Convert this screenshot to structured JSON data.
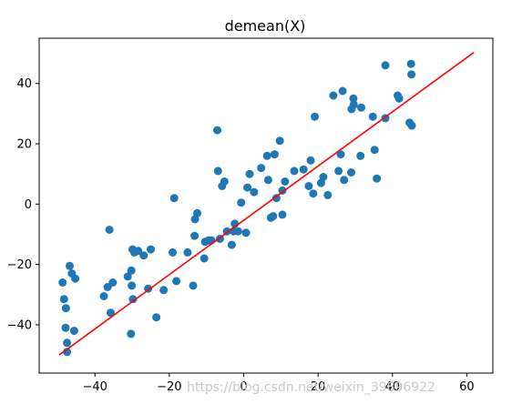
{
  "chart_data": {
    "type": "scatter",
    "title": "demean(X)",
    "xlabel": "",
    "ylabel": "",
    "xlim": [
      -55,
      67
    ],
    "ylim": [
      -56,
      55
    ],
    "xticks": [
      -40,
      -20,
      0,
      20,
      40,
      60
    ],
    "yticks": [
      -40,
      -20,
      0,
      20,
      40
    ],
    "grid": false,
    "series": [
      {
        "type": "scatter",
        "color": "#1f77b4",
        "x": [
          -48.7,
          -48.3,
          -47.9,
          -47.8,
          -47.5,
          -47.5,
          -46.8,
          -46.2,
          -45.6,
          -45.3,
          -37.6,
          -36.6,
          -36.1,
          -35.8,
          -35.2,
          -31.2,
          -30.3,
          -30.2,
          -30.1,
          -29.9,
          -29.8,
          -29.4,
          -28.4,
          -26.9,
          -25.7,
          -25.0,
          -23.5,
          -21.5,
          -19.1,
          -18.7,
          -18.1,
          -15.1,
          -13.6,
          -13.2,
          -13.1,
          -12.5,
          -10.6,
          -10.4,
          -9.4,
          -8.7,
          -7.1,
          -6.9,
          -6.4,
          -5.8,
          -5.2,
          -4.5,
          -3.2,
          -2.7,
          -2.4,
          -1.5,
          -0.7,
          0.6,
          1.0,
          1.6,
          2.8,
          4.7,
          6.3,
          6.6,
          7.3,
          7.9,
          8.3,
          8.8,
          9.7,
          10.4,
          10.4,
          11.1,
          13.6,
          16.1,
          17.5,
          18.0,
          18.7,
          19.1,
          20.8,
          21.4,
          22.6,
          24.1,
          25.5,
          26.1,
          26.6,
          27.0,
          28.9,
          29.0,
          29.5,
          29.6,
          31.4,
          31.6,
          34.7,
          35.2,
          35.8,
          38.1,
          38.1,
          41.4,
          41.8,
          44.6,
          45.0,
          45.1,
          45.2
        ],
        "y": [
          -26.0,
          -31.5,
          -41.0,
          -34.5,
          -46.0,
          -49.0,
          -20.5,
          -23.0,
          -42.0,
          -24.7,
          -30.5,
          -27.5,
          -8.5,
          -36.0,
          -26.0,
          -24.0,
          -43.0,
          -22.0,
          -27.0,
          -15.0,
          -31.5,
          -16.0,
          -15.5,
          -17.0,
          -28.0,
          -15.0,
          -37.5,
          -28.5,
          -16.0,
          2.0,
          -25.5,
          -16.0,
          -27.0,
          -10.5,
          -5.0,
          -3.0,
          -18.0,
          -12.5,
          -12.0,
          -12.0,
          24.5,
          11.0,
          -11.5,
          6.0,
          7.5,
          -9.0,
          -13.5,
          -9.0,
          -6.5,
          -9.0,
          0.5,
          -9.5,
          5.5,
          10.0,
          4.0,
          12.0,
          16.0,
          8.0,
          -4.5,
          -4.0,
          16.5,
          2.0,
          21.0,
          4.5,
          -3.5,
          7.5,
          11.0,
          11.5,
          6.0,
          14.5,
          3.5,
          29.0,
          7.0,
          9.0,
          3.0,
          36.0,
          11.0,
          16.5,
          37.5,
          8.0,
          10.5,
          31.5,
          35.0,
          33.0,
          16.0,
          32.0,
          29.0,
          18.0,
          8.5,
          28.5,
          46.0,
          36.0,
          35.0,
          27.0,
          46.5,
          43.0,
          26.0
        ]
      },
      {
        "type": "line",
        "color": "#ff0000",
        "x": [
          -49.6,
          61.9
        ],
        "y": [
          -50.0,
          50.3
        ]
      }
    ]
  },
  "watermark": "https://blog.csdn.net/weixin_39896922"
}
